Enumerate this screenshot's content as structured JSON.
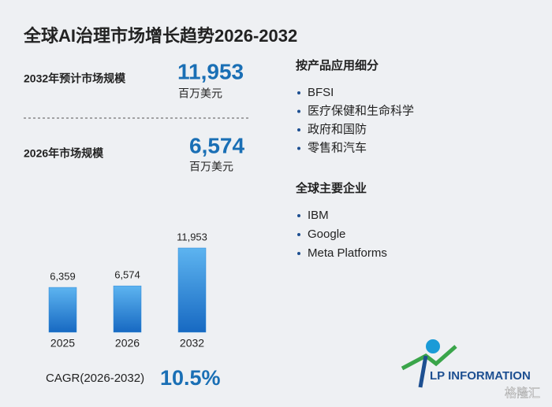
{
  "title": "全球AI治理市场增长趋势2026-2032",
  "stats": [
    {
      "label": "2032年预计市场规模",
      "value": "11,953",
      "unit": "百万美元"
    },
    {
      "label": "2026年市场规模",
      "value": "6,574",
      "unit": "百万美元"
    }
  ],
  "segments": {
    "title": "按产品应用细分",
    "items": [
      "BFSI",
      "医疗保健和生命科学",
      "政府和国防",
      "零售和汽车"
    ]
  },
  "companies": {
    "title": "全球主要企业",
    "items": [
      "IBM",
      "Google",
      "Meta Platforms"
    ]
  },
  "cagr": {
    "label": "CAGR(2026-2032)",
    "value": "10.5%"
  },
  "logo": {
    "brand": "LP INFORMATION",
    "watermark": "格隆汇"
  },
  "chart_data": {
    "type": "bar",
    "categories": [
      "2025",
      "2026",
      "2032"
    ],
    "values": [
      6359,
      6574,
      11953
    ],
    "value_labels": [
      "6,359",
      "6,574",
      "11,953"
    ],
    "color": "#2a86d6"
  }
}
